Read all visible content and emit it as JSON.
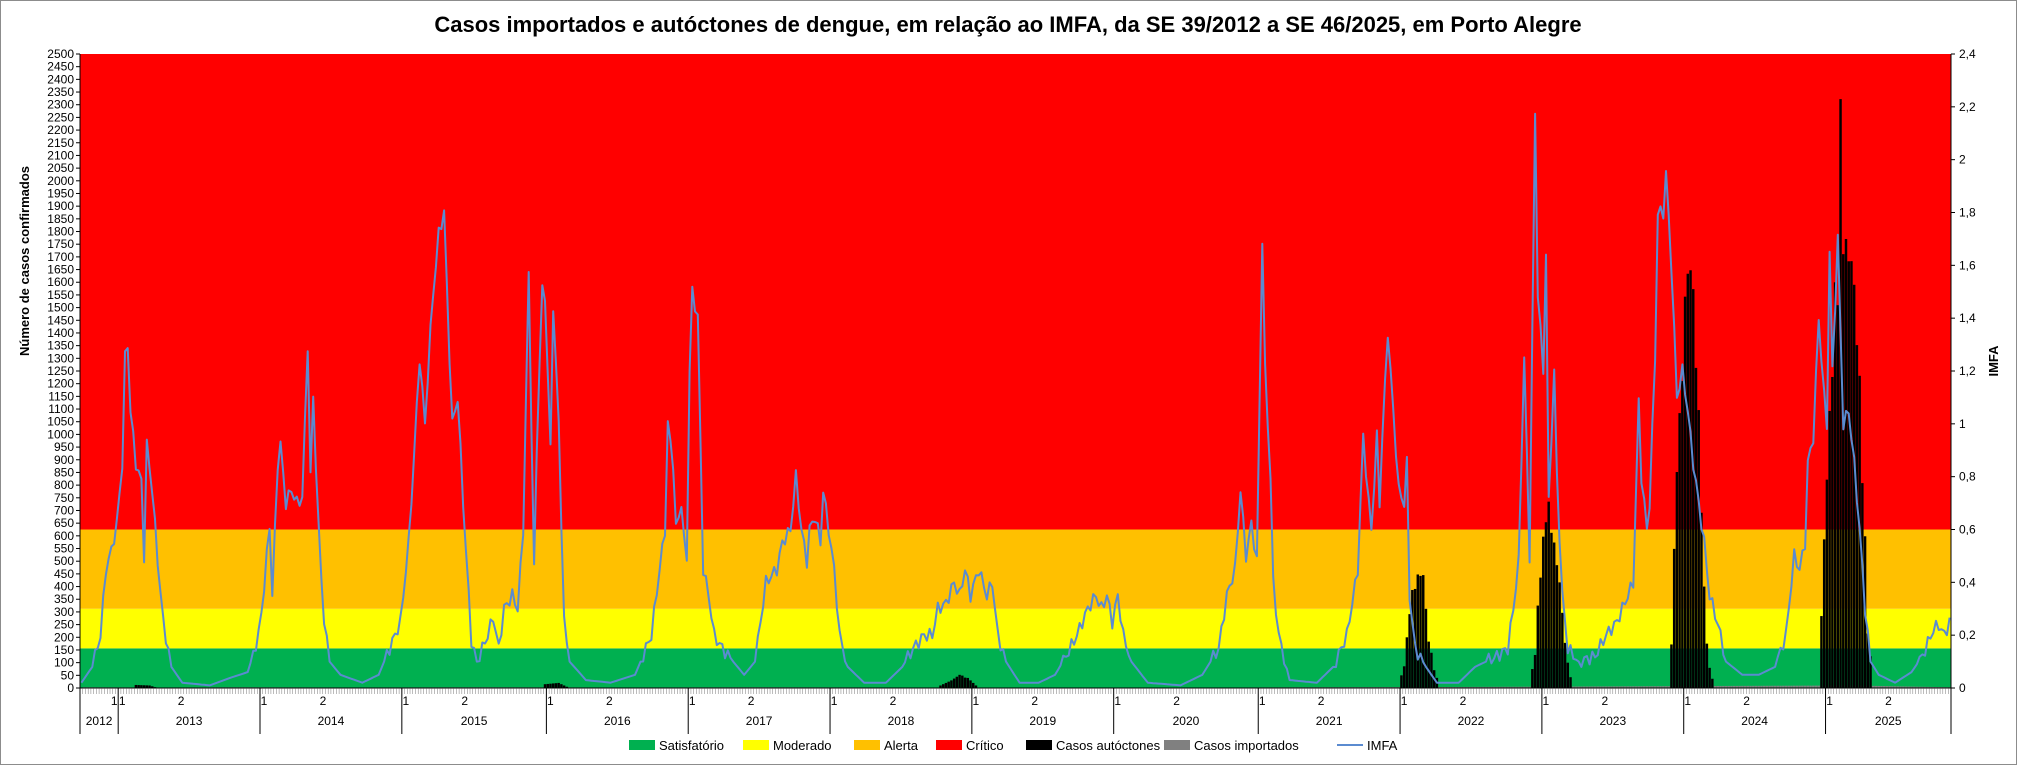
{
  "chart_data": {
    "type": "bar",
    "title": "Casos importados e autóctones de dengue, em relação ao IMFA, da SE 39/2012 a SE 46/2025, em Porto Alegre",
    "ylabel": "Número de casos confirmados",
    "y2label": "IMFA",
    "ylim": [
      0,
      2500
    ],
    "y_ticks": [
      "0",
      "50",
      "100",
      "150",
      "200",
      "250",
      "300",
      "350",
      "400",
      "450",
      "500",
      "550",
      "600",
      "650",
      "700",
      "750",
      "800",
      "850",
      "900",
      "950",
      "1000",
      "1050",
      "1100",
      "1150",
      "1200",
      "1250",
      "1300",
      "1350",
      "1400",
      "1450",
      "1500",
      "1550",
      "1600",
      "1650",
      "1700",
      "1750",
      "1800",
      "1850",
      "1900",
      "1950",
      "2000",
      "2050",
      "2100",
      "2150",
      "2200",
      "2250",
      "2300",
      "2350",
      "2400",
      "2450",
      "2500"
    ],
    "y2lim": [
      0,
      2.4
    ],
    "y2_ticks": [
      "0",
      "0,2",
      "0,4",
      "0,6",
      "0,8",
      "1",
      "1,2",
      "1,4",
      "1,6",
      "1,8",
      "2",
      "2,2",
      "2,4"
    ],
    "x_weeks_total": 686,
    "years": [
      {
        "label": "2012",
        "start": 1,
        "weeks": 14
      },
      {
        "label": "2013",
        "start": 15,
        "weeks": 52
      },
      {
        "label": "2014",
        "start": 67,
        "weeks": 52
      },
      {
        "label": "2015",
        "start": 119,
        "weeks": 53
      },
      {
        "label": "2016",
        "start": 172,
        "weeks": 52
      },
      {
        "label": "2017",
        "start": 224,
        "weeks": 52
      },
      {
        "label": "2018",
        "start": 276,
        "weeks": 52
      },
      {
        "label": "2019",
        "start": 328,
        "weeks": 52
      },
      {
        "label": "2020",
        "start": 380,
        "weeks": 53
      },
      {
        "label": "2021",
        "start": 433,
        "weeks": 52
      },
      {
        "label": "2022",
        "start": 485,
        "weeks": 52
      },
      {
        "label": "2023",
        "start": 537,
        "weeks": 52
      },
      {
        "label": "2024",
        "start": 589,
        "weeks": 52
      },
      {
        "label": "2025",
        "start": 641,
        "weeks": 46
      }
    ],
    "semester_labels": [
      "1",
      "2"
    ],
    "bands": [
      {
        "name": "Satisfatório",
        "from": 0,
        "to": 0.15,
        "color": "#00b050"
      },
      {
        "name": "Moderado",
        "from": 0.15,
        "to": 0.3,
        "color": "#ffff00"
      },
      {
        "name": "Alerta",
        "from": 0.3,
        "to": 0.6,
        "color": "#ffc000"
      },
      {
        "name": "Crítico",
        "from": 0.6,
        "to": 2.4,
        "color": "#ff0000"
      }
    ],
    "series": [
      {
        "name": "Casos autóctones",
        "color": "#000000"
      },
      {
        "name": "Casos importados",
        "color": "#808080"
      },
      {
        "name": "IMFA",
        "color": "#5b8bd0"
      }
    ],
    "imfa_anchors": [
      [
        1,
        0.02
      ],
      [
        5,
        0.08
      ],
      [
        8,
        0.2
      ],
      [
        10,
        0.45
      ],
      [
        12,
        0.52
      ],
      [
        14,
        0.62
      ],
      [
        16,
        0.85
      ],
      [
        17,
        1.25
      ],
      [
        18,
        1.3
      ],
      [
        19,
        1.05
      ],
      [
        21,
        0.85
      ],
      [
        23,
        0.78
      ],
      [
        24,
        0.5
      ],
      [
        25,
        0.92
      ],
      [
        27,
        0.75
      ],
      [
        29,
        0.48
      ],
      [
        31,
        0.25
      ],
      [
        34,
        0.08
      ],
      [
        38,
        0.02
      ],
      [
        48,
        0.01
      ],
      [
        56,
        0.04
      ],
      [
        62,
        0.06
      ],
      [
        66,
        0.2
      ],
      [
        68,
        0.38
      ],
      [
        70,
        0.62
      ],
      [
        71,
        0.35
      ],
      [
        73,
        0.85
      ],
      [
        74,
        0.92
      ],
      [
        76,
        0.7
      ],
      [
        78,
        0.75
      ],
      [
        80,
        0.7
      ],
      [
        82,
        0.72
      ],
      [
        84,
        1.3
      ],
      [
        85,
        0.8
      ],
      [
        86,
        1.1
      ],
      [
        88,
        0.6
      ],
      [
        90,
        0.25
      ],
      [
        92,
        0.1
      ],
      [
        96,
        0.05
      ],
      [
        104,
        0.02
      ],
      [
        110,
        0.05
      ],
      [
        114,
        0.15
      ],
      [
        118,
        0.25
      ],
      [
        121,
        0.55
      ],
      [
        123,
        0.88
      ],
      [
        125,
        1.25
      ],
      [
        127,
        1.0
      ],
      [
        129,
        1.35
      ],
      [
        130,
        1.5
      ],
      [
        131,
        1.6
      ],
      [
        132,
        1.72
      ],
      [
        134,
        1.8
      ],
      [
        136,
        1.25
      ],
      [
        137,
        1.0
      ],
      [
        139,
        1.1
      ],
      [
        141,
        0.7
      ],
      [
        143,
        0.35
      ],
      [
        144,
        0.18
      ],
      [
        146,
        0.1
      ],
      [
        150,
        0.2
      ],
      [
        152,
        0.27
      ],
      [
        154,
        0.15
      ],
      [
        156,
        0.3
      ],
      [
        159,
        0.35
      ],
      [
        161,
        0.3
      ],
      [
        163,
        0.6
      ],
      [
        165,
        1.56
      ],
      [
        167,
        0.45
      ],
      [
        168,
        0.9
      ],
      [
        169,
        1.25
      ],
      [
        170,
        1.5
      ],
      [
        171,
        1.48
      ],
      [
        173,
        0.9
      ],
      [
        174,
        1.45
      ],
      [
        176,
        1.0
      ],
      [
        178,
        0.25
      ],
      [
        180,
        0.1
      ],
      [
        186,
        0.03
      ],
      [
        195,
        0.02
      ],
      [
        204,
        0.05
      ],
      [
        210,
        0.2
      ],
      [
        213,
        0.45
      ],
      [
        215,
        0.6
      ],
      [
        216,
        1.0
      ],
      [
        218,
        0.85
      ],
      [
        219,
        0.6
      ],
      [
        221,
        0.7
      ],
      [
        222,
        0.55
      ],
      [
        223,
        0.5
      ],
      [
        224,
        1.2
      ],
      [
        225,
        1.5
      ],
      [
        227,
        1.4
      ],
      [
        229,
        0.45
      ],
      [
        231,
        0.35
      ],
      [
        233,
        0.2
      ],
      [
        236,
        0.15
      ],
      [
        240,
        0.1
      ],
      [
        244,
        0.05
      ],
      [
        248,
        0.1
      ],
      [
        252,
        0.4
      ],
      [
        256,
        0.45
      ],
      [
        258,
        0.55
      ],
      [
        261,
        0.6
      ],
      [
        263,
        0.8
      ],
      [
        265,
        0.6
      ],
      [
        267,
        0.48
      ],
      [
        268,
        0.6
      ],
      [
        270,
        0.65
      ],
      [
        272,
        0.55
      ],
      [
        273,
        0.75
      ],
      [
        275,
        0.6
      ],
      [
        277,
        0.45
      ],
      [
        279,
        0.2
      ],
      [
        282,
        0.08
      ],
      [
        288,
        0.02
      ],
      [
        296,
        0.02
      ],
      [
        302,
        0.08
      ],
      [
        306,
        0.15
      ],
      [
        310,
        0.2
      ],
      [
        313,
        0.2
      ],
      [
        315,
        0.3
      ],
      [
        318,
        0.32
      ],
      [
        321,
        0.4
      ],
      [
        323,
        0.35
      ],
      [
        325,
        0.45
      ],
      [
        327,
        0.35
      ],
      [
        330,
        0.45
      ],
      [
        333,
        0.35
      ],
      [
        335,
        0.4
      ],
      [
        337,
        0.2
      ],
      [
        340,
        0.1
      ],
      [
        345,
        0.02
      ],
      [
        352,
        0.02
      ],
      [
        358,
        0.05
      ],
      [
        362,
        0.12
      ],
      [
        366,
        0.2
      ],
      [
        370,
        0.3
      ],
      [
        373,
        0.35
      ],
      [
        375,
        0.3
      ],
      [
        377,
        0.35
      ],
      [
        379,
        0.25
      ],
      [
        381,
        0.35
      ],
      [
        383,
        0.2
      ],
      [
        386,
        0.1
      ],
      [
        392,
        0.02
      ],
      [
        404,
        0.01
      ],
      [
        412,
        0.05
      ],
      [
        418,
        0.15
      ],
      [
        421,
        0.35
      ],
      [
        424,
        0.45
      ],
      [
        426,
        0.75
      ],
      [
        428,
        0.5
      ],
      [
        430,
        0.62
      ],
      [
        432,
        0.48
      ],
      [
        434,
        1.7
      ],
      [
        435,
        1.2
      ],
      [
        437,
        0.8
      ],
      [
        438,
        0.4
      ],
      [
        440,
        0.2
      ],
      [
        444,
        0.03
      ],
      [
        454,
        0.02
      ],
      [
        460,
        0.08
      ],
      [
        465,
        0.2
      ],
      [
        469,
        0.45
      ],
      [
        471,
        0.95
      ],
      [
        473,
        0.7
      ],
      [
        474,
        0.6
      ],
      [
        476,
        0.95
      ],
      [
        477,
        0.7
      ],
      [
        478,
        0.95
      ],
      [
        480,
        1.35
      ],
      [
        482,
        1.05
      ],
      [
        484,
        0.75
      ],
      [
        486,
        0.7
      ],
      [
        487,
        0.85
      ],
      [
        488,
        0.35
      ],
      [
        490,
        0.15
      ],
      [
        494,
        0.08
      ],
      [
        498,
        0.02
      ],
      [
        506,
        0.02
      ],
      [
        512,
        0.08
      ],
      [
        516,
        0.1
      ],
      [
        520,
        0.12
      ],
      [
        524,
        0.15
      ],
      [
        526,
        0.3
      ],
      [
        528,
        0.48
      ],
      [
        530,
        1.25
      ],
      [
        532,
        0.5
      ],
      [
        534,
        2.17
      ],
      [
        535,
        1.5
      ],
      [
        537,
        1.2
      ],
      [
        538,
        1.65
      ],
      [
        539,
        0.7
      ],
      [
        541,
        1.2
      ],
      [
        542,
        0.8
      ],
      [
        544,
        0.35
      ],
      [
        546,
        0.15
      ],
      [
        550,
        0.1
      ],
      [
        556,
        0.12
      ],
      [
        560,
        0.2
      ],
      [
        564,
        0.25
      ],
      [
        568,
        0.35
      ],
      [
        570,
        0.4
      ],
      [
        572,
        1.08
      ],
      [
        573,
        0.8
      ],
      [
        575,
        0.6
      ],
      [
        576,
        0.7
      ],
      [
        578,
        1.25
      ],
      [
        579,
        1.8
      ],
      [
        581,
        1.8
      ],
      [
        582,
        1.95
      ],
      [
        584,
        1.6
      ],
      [
        586,
        1.1
      ],
      [
        588,
        1.2
      ],
      [
        590,
        1.05
      ],
      [
        592,
        0.85
      ],
      [
        594,
        0.7
      ],
      [
        596,
        0.55
      ],
      [
        598,
        0.35
      ],
      [
        600,
        0.28
      ],
      [
        602,
        0.2
      ],
      [
        604,
        0.1
      ],
      [
        610,
        0.05
      ],
      [
        616,
        0.05
      ],
      [
        622,
        0.08
      ],
      [
        626,
        0.2
      ],
      [
        629,
        0.5
      ],
      [
        631,
        0.45
      ],
      [
        633,
        0.55
      ],
      [
        634,
        0.85
      ],
      [
        636,
        0.95
      ],
      [
        638,
        1.4
      ],
      [
        640,
        1.1
      ],
      [
        641,
        1.0
      ],
      [
        642,
        1.65
      ],
      [
        643,
        1.2
      ],
      [
        645,
        1.7
      ],
      [
        647,
        1.0
      ],
      [
        649,
        1.05
      ],
      [
        651,
        0.85
      ],
      [
        653,
        0.6
      ],
      [
        655,
        0.3
      ],
      [
        657,
        0.1
      ],
      [
        660,
        0.05
      ],
      [
        666,
        0.02
      ],
      [
        672,
        0.06
      ],
      [
        676,
        0.12
      ],
      [
        680,
        0.22
      ],
      [
        682,
        0.24
      ],
      [
        684,
        0.2
      ],
      [
        686,
        0.25
      ]
    ],
    "autoctones_anchors": [
      [
        1,
        0
      ],
      [
        20,
        0
      ],
      [
        21,
        12
      ],
      [
        26,
        10
      ],
      [
        29,
        0
      ],
      [
        170,
        0
      ],
      [
        171,
        15
      ],
      [
        176,
        20
      ],
      [
        180,
        0
      ],
      [
        315,
        0
      ],
      [
        316,
        10
      ],
      [
        320,
        30
      ],
      [
        323,
        55
      ],
      [
        326,
        40
      ],
      [
        330,
        0
      ],
      [
        484,
        0
      ],
      [
        486,
        100
      ],
      [
        487,
        200
      ],
      [
        488,
        330
      ],
      [
        489,
        390
      ],
      [
        491,
        460
      ],
      [
        493,
        470
      ],
      [
        494,
        320
      ],
      [
        495,
        200
      ],
      [
        497,
        80
      ],
      [
        499,
        0
      ],
      [
        532,
        0
      ],
      [
        534,
        150
      ],
      [
        536,
        500
      ],
      [
        537,
        600
      ],
      [
        538,
        720
      ],
      [
        539,
        750
      ],
      [
        540,
        650
      ],
      [
        541,
        600
      ],
      [
        542,
        500
      ],
      [
        543,
        450
      ],
      [
        544,
        300
      ],
      [
        546,
        100
      ],
      [
        548,
        0
      ],
      [
        583,
        0
      ],
      [
        584,
        200
      ],
      [
        585,
        550
      ],
      [
        586,
        950
      ],
      [
        587,
        1100
      ],
      [
        588,
        1300
      ],
      [
        589,
        1600
      ],
      [
        590,
        1700
      ],
      [
        591,
        1760
      ],
      [
        592,
        1600
      ],
      [
        593,
        1400
      ],
      [
        594,
        1100
      ],
      [
        595,
        800
      ],
      [
        596,
        400
      ],
      [
        597,
        200
      ],
      [
        598,
        80
      ],
      [
        600,
        0
      ],
      [
        638,
        0
      ],
      [
        639,
        300
      ],
      [
        640,
        600
      ],
      [
        641,
        900
      ],
      [
        642,
        1100
      ],
      [
        643,
        1400
      ],
      [
        644,
        1600
      ],
      [
        645,
        1750
      ],
      [
        646,
        2330
      ],
      [
        647,
        1900
      ],
      [
        648,
        1800
      ],
      [
        649,
        1800
      ],
      [
        650,
        1750
      ],
      [
        651,
        1650
      ],
      [
        652,
        1450
      ],
      [
        653,
        1250
      ],
      [
        654,
        900
      ],
      [
        655,
        600
      ],
      [
        656,
        250
      ],
      [
        658,
        0
      ],
      [
        686,
        0
      ]
    ],
    "importados_anchors": [
      [
        1,
        0
      ],
      [
        2,
        3
      ],
      [
        30,
        2
      ],
      [
        60,
        3
      ],
      [
        100,
        2
      ],
      [
        150,
        3
      ],
      [
        200,
        2
      ],
      [
        250,
        3
      ],
      [
        300,
        2
      ],
      [
        350,
        2
      ],
      [
        400,
        1
      ],
      [
        450,
        3
      ],
      [
        500,
        4
      ],
      [
        550,
        6
      ],
      [
        600,
        8
      ],
      [
        650,
        10
      ],
      [
        686,
        3
      ]
    ],
    "legend": [
      "Satisfatório",
      "Moderado",
      "Alerta",
      "Crítico",
      "Casos autóctones",
      "Casos importados",
      "IMFA"
    ]
  }
}
